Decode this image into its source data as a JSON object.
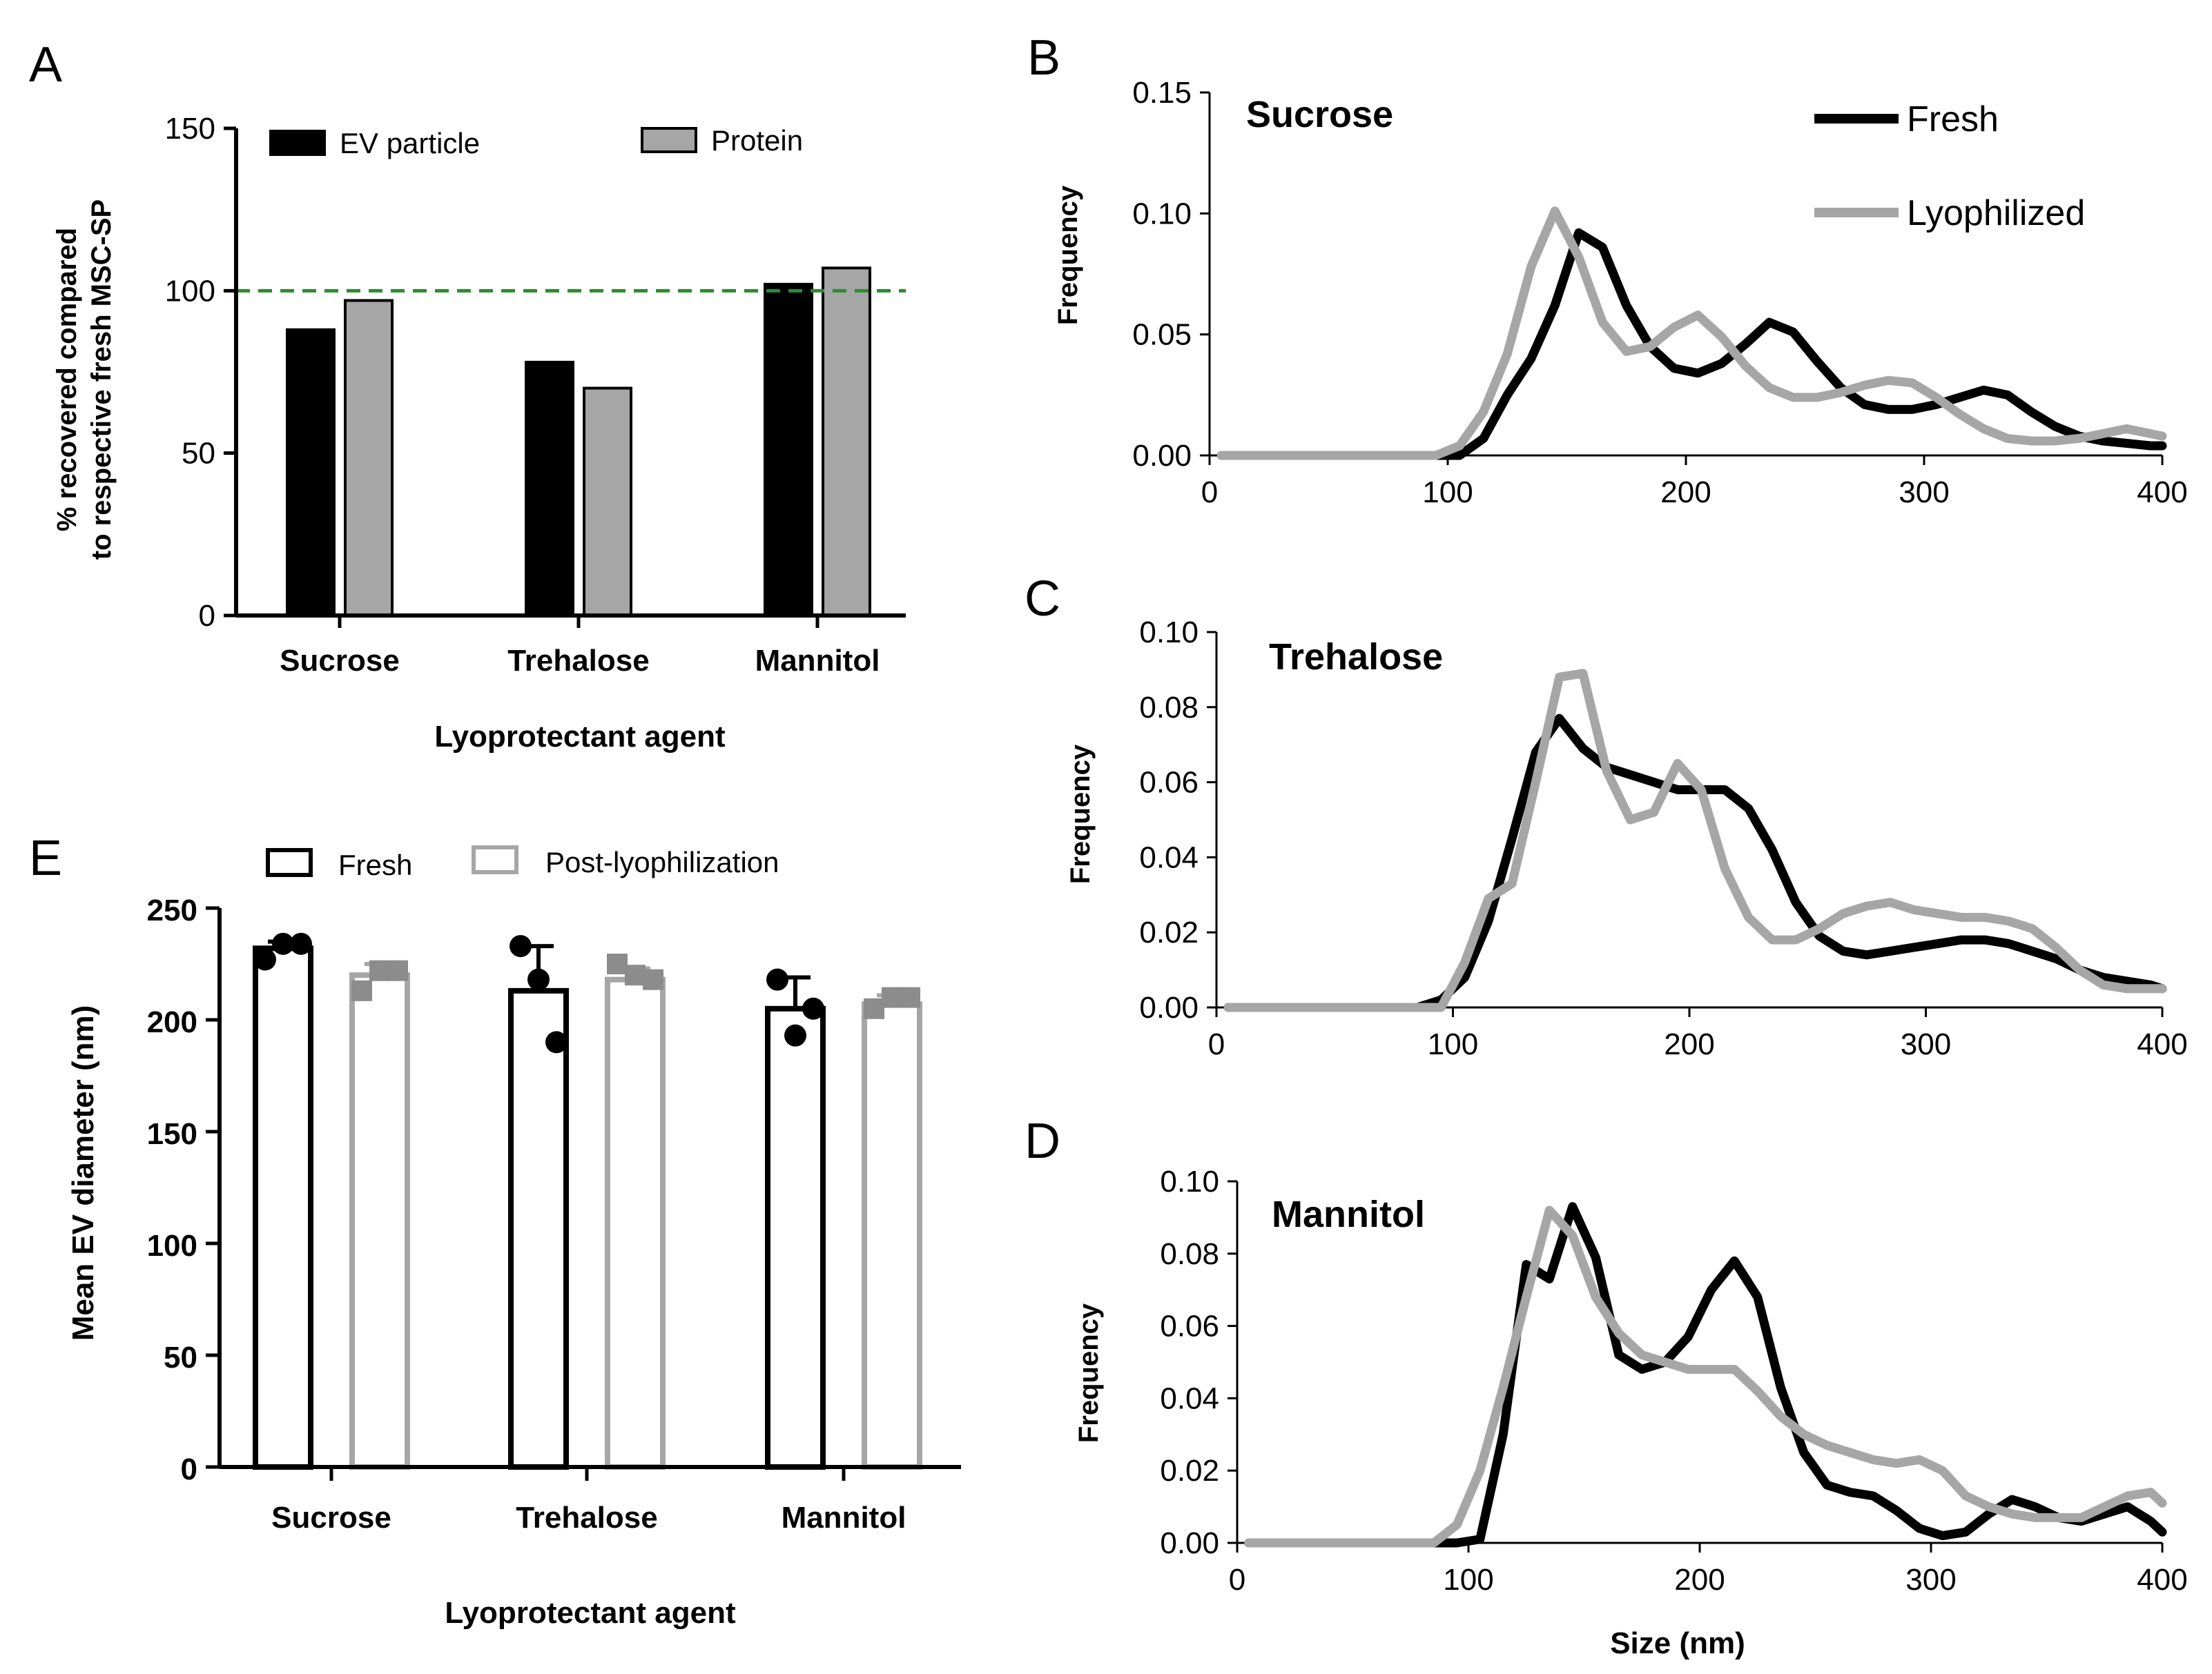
{
  "panel_letters": {
    "A": "A",
    "B": "B",
    "C": "C",
    "D": "D",
    "E": "E"
  },
  "colors": {
    "fresh": "#000000",
    "lyophilized": "#a6a6a6",
    "protein": "#a6a6a6",
    "reference": "#2e8b2e"
  },
  "chart_data": [
    {
      "id": "A",
      "type": "bar",
      "ylabel_line1": "% recovered compared",
      "ylabel_line2": "to respective fresh MSC-SP",
      "xlabel": "Lyoprotectant agent",
      "categories": [
        "Sucrose",
        "Trehalose",
        "Mannitol"
      ],
      "series": [
        {
          "name": "EV particle",
          "values": [
            88,
            78,
            102
          ]
        },
        {
          "name": "Protein",
          "values": [
            97,
            70,
            107
          ]
        }
      ],
      "reference_line": 100,
      "ylim": [
        0,
        150
      ],
      "yticks": [
        0,
        50,
        100,
        150
      ],
      "ytick_labels": [
        "0",
        "50",
        "100",
        "150"
      ]
    },
    {
      "id": "B",
      "type": "line",
      "title": "Sucrose",
      "ylabel": "Frequency",
      "xlim": [
        0,
        400
      ],
      "ylim": [
        0,
        0.15
      ],
      "xticks": [
        0,
        100,
        200,
        300,
        400
      ],
      "xtick_labels": [
        "0",
        "100",
        "200",
        "300",
        "400"
      ],
      "yticks": [
        0,
        0.05,
        0.1,
        0.15
      ],
      "ytick_labels": [
        "0.00",
        "0.05",
        "0.10",
        "0.15"
      ],
      "x": [
        5,
        15,
        25,
        35,
        45,
        55,
        65,
        75,
        85,
        95,
        105,
        115,
        125,
        135,
        145,
        155,
        165,
        175,
        185,
        195,
        205,
        215,
        225,
        235,
        245,
        255,
        265,
        275,
        285,
        295,
        305,
        315,
        325,
        335,
        345,
        355,
        365,
        375,
        385,
        395,
        400
      ],
      "series": [
        {
          "name": "Fresh",
          "values": [
            0,
            0,
            0,
            0,
            0,
            0,
            0,
            0,
            0,
            0,
            0,
            0.007,
            0.025,
            0.04,
            0.062,
            0.092,
            0.086,
            0.062,
            0.045,
            0.036,
            0.034,
            0.038,
            0.046,
            0.055,
            0.051,
            0.039,
            0.028,
            0.021,
            0.019,
            0.019,
            0.021,
            0.024,
            0.027,
            0.025,
            0.018,
            0.012,
            0.008,
            0.006,
            0.005,
            0.004,
            0.004
          ]
        },
        {
          "name": "Lyophilized",
          "values": [
            0,
            0,
            0,
            0,
            0,
            0,
            0,
            0,
            0,
            0,
            0.004,
            0.018,
            0.042,
            0.078,
            0.101,
            0.082,
            0.055,
            0.043,
            0.045,
            0.053,
            0.058,
            0.049,
            0.037,
            0.028,
            0.024,
            0.024,
            0.026,
            0.029,
            0.031,
            0.03,
            0.024,
            0.017,
            0.011,
            0.007,
            0.006,
            0.006,
            0.007,
            0.009,
            0.011,
            0.009,
            0.008
          ]
        }
      ]
    },
    {
      "id": "C",
      "type": "line",
      "title": "Trehalose",
      "ylabel": "Frequency",
      "xlim": [
        0,
        400
      ],
      "ylim": [
        0,
        0.1
      ],
      "xticks": [
        0,
        100,
        200,
        300,
        400
      ],
      "xtick_labels": [
        "0",
        "100",
        "200",
        "300",
        "400"
      ],
      "yticks": [
        0,
        0.02,
        0.04,
        0.06,
        0.08,
        0.1
      ],
      "ytick_labels": [
        "0.00",
        "0.02",
        "0.04",
        "0.06",
        "0.08",
        "0.10"
      ],
      "x": [
        5,
        15,
        25,
        35,
        45,
        55,
        65,
        75,
        85,
        95,
        105,
        115,
        125,
        135,
        145,
        155,
        165,
        175,
        185,
        195,
        205,
        215,
        225,
        235,
        245,
        255,
        265,
        275,
        285,
        295,
        305,
        315,
        325,
        335,
        345,
        355,
        365,
        375,
        385,
        395,
        400
      ],
      "series": [
        {
          "name": "Fresh",
          "values": [
            0,
            0,
            0,
            0,
            0,
            0,
            0,
            0,
            0,
            0.002,
            0.008,
            0.023,
            0.045,
            0.068,
            0.077,
            0.069,
            0.064,
            0.062,
            0.06,
            0.058,
            0.058,
            0.058,
            0.053,
            0.042,
            0.028,
            0.019,
            0.015,
            0.014,
            0.015,
            0.016,
            0.017,
            0.018,
            0.018,
            0.017,
            0.015,
            0.013,
            0.01,
            0.008,
            0.007,
            0.006,
            0.005
          ]
        },
        {
          "name": "Lyophilized",
          "values": [
            0,
            0,
            0,
            0,
            0,
            0,
            0,
            0,
            0,
            0,
            0.012,
            0.029,
            0.033,
            0.06,
            0.088,
            0.089,
            0.063,
            0.05,
            0.052,
            0.065,
            0.058,
            0.037,
            0.024,
            0.018,
            0.018,
            0.021,
            0.025,
            0.027,
            0.028,
            0.026,
            0.025,
            0.024,
            0.024,
            0.023,
            0.021,
            0.016,
            0.01,
            0.006,
            0.005,
            0.005,
            0.005
          ]
        }
      ]
    },
    {
      "id": "D",
      "type": "line",
      "title": "Mannitol",
      "ylabel": "Frequency",
      "xlabel": "Size (nm)",
      "xlim": [
        0,
        400
      ],
      "ylim": [
        0,
        0.1
      ],
      "xticks": [
        0,
        100,
        200,
        300,
        400
      ],
      "xtick_labels": [
        "0",
        "100",
        "200",
        "300",
        "400"
      ],
      "yticks": [
        0,
        0.02,
        0.04,
        0.06,
        0.08,
        0.1
      ],
      "ytick_labels": [
        "0.00",
        "0.02",
        "0.04",
        "0.06",
        "0.08",
        "0.10"
      ],
      "x": [
        5,
        15,
        25,
        35,
        45,
        55,
        65,
        75,
        85,
        95,
        105,
        115,
        125,
        135,
        145,
        155,
        165,
        175,
        185,
        195,
        205,
        215,
        225,
        235,
        245,
        255,
        265,
        275,
        285,
        295,
        305,
        315,
        325,
        335,
        345,
        355,
        365,
        375,
        385,
        395,
        400
      ],
      "series": [
        {
          "name": "Fresh",
          "values": [
            0,
            0,
            0,
            0,
            0,
            0,
            0,
            0,
            0,
            0,
            0.001,
            0.03,
            0.077,
            0.073,
            0.093,
            0.079,
            0.052,
            0.048,
            0.05,
            0.057,
            0.07,
            0.078,
            0.068,
            0.043,
            0.025,
            0.016,
            0.014,
            0.013,
            0.009,
            0.004,
            0.002,
            0.003,
            0.008,
            0.012,
            0.01,
            0.007,
            0.006,
            0.008,
            0.01,
            0.006,
            0.003
          ]
        },
        {
          "name": "Lyophilized",
          "values": [
            0,
            0,
            0,
            0,
            0,
            0,
            0,
            0,
            0,
            0.005,
            0.02,
            0.043,
            0.068,
            0.092,
            0.085,
            0.068,
            0.058,
            0.052,
            0.05,
            0.048,
            0.048,
            0.048,
            0.042,
            0.035,
            0.03,
            0.027,
            0.025,
            0.023,
            0.022,
            0.023,
            0.02,
            0.013,
            0.01,
            0.008,
            0.007,
            0.007,
            0.007,
            0.01,
            0.013,
            0.014,
            0.011
          ]
        }
      ]
    },
    {
      "id": "E",
      "type": "bar",
      "ylabel": "Mean EV diameter (nm)",
      "xlabel": "Lyoprotectant agent",
      "categories": [
        "Sucrose",
        "Trehalose",
        "Mannitol"
      ],
      "series": [
        {
          "name": "Fresh",
          "values": [
            232,
            213,
            205
          ],
          "errors": [
            3,
            20,
            14
          ],
          "points": [
            [
              227,
              234,
              234
            ],
            [
              233,
              218,
              190
            ],
            [
              218,
              193,
              205
            ]
          ]
        },
        {
          "name": "Post-lyophilization",
          "values": [
            220,
            218,
            207
          ],
          "errors": [
            5,
            5,
            4
          ],
          "points": [
            [
              213,
              222,
              222
            ],
            [
              225,
              220,
              218
            ],
            [
              205,
              210,
              210
            ]
          ]
        }
      ],
      "ylim": [
        0,
        250
      ],
      "yticks": [
        0,
        50,
        100,
        150,
        200,
        250
      ],
      "ytick_labels": [
        "0",
        "50",
        "100",
        "150",
        "200",
        "250"
      ]
    }
  ]
}
